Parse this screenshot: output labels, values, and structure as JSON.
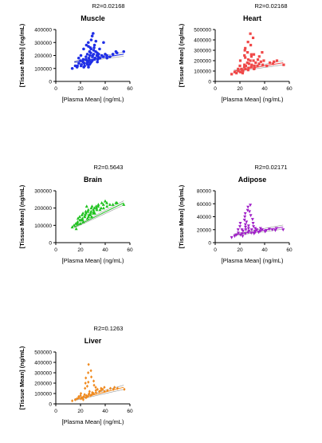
{
  "chart_data": [
    {
      "type": "scatter",
      "title": "Muscle",
      "r2_label": "R2=0.02168",
      "xlabel": "[Plasma Mean] (ng/mL)",
      "ylabel": "[Tissue Mean] (ng/mL)",
      "xlim": [
        0,
        60
      ],
      "ylim": [
        0,
        400000
      ],
      "xticks": [
        "0",
        "20",
        "40",
        "60"
      ],
      "yticks": [
        "0",
        "100000",
        "200000",
        "300000",
        "400000"
      ],
      "color": "#1f2ee6",
      "marker": "circle",
      "fit": {
        "start": [
          15,
          150000
        ],
        "end": [
          55,
          210000
        ]
      },
      "x": [
        14,
        16,
        17,
        18,
        19,
        20,
        20,
        21,
        21,
        22,
        22,
        23,
        23,
        24,
        24,
        25,
        25,
        25,
        26,
        26,
        26,
        27,
        27,
        27,
        28,
        28,
        28,
        29,
        29,
        29,
        30,
        30,
        30,
        31,
        31,
        32,
        32,
        33,
        33,
        34,
        34,
        35,
        35,
        36,
        37,
        38,
        39,
        40,
        41,
        42,
        44,
        46,
        48,
        50,
        55,
        26,
        28,
        30,
        27,
        29,
        18,
        22,
        24,
        33,
        35,
        25,
        30,
        29,
        28,
        32
      ],
      "y": [
        100000,
        120000,
        110000,
        140000,
        180000,
        160000,
        120000,
        200000,
        130000,
        170000,
        110000,
        250000,
        140000,
        190000,
        120000,
        280000,
        160000,
        130000,
        210000,
        150000,
        110000,
        300000,
        180000,
        130000,
        320000,
        200000,
        140000,
        350000,
        220000,
        150000,
        370000,
        240000,
        160000,
        260000,
        170000,
        280000,
        180000,
        200000,
        150000,
        220000,
        170000,
        250000,
        190000,
        180000,
        200000,
        300000,
        190000,
        210000,
        180000,
        200000,
        190000,
        210000,
        230000,
        220000,
        230000,
        270000,
        230000,
        200000,
        160000,
        190000,
        120000,
        150000,
        170000,
        230000,
        210000,
        140000,
        210000,
        250000,
        260000,
        310000
      ]
    },
    {
      "type": "scatter",
      "title": "Heart",
      "r2_label": "R2=0.02168",
      "xlabel": "[Plasma Mean] (ng/mL)",
      "ylabel": "[Tissue Mean] (ng/mL)",
      "xlim": [
        0,
        60
      ],
      "ylim": [
        0,
        500000
      ],
      "xticks": [
        "0",
        "20",
        "40",
        "60"
      ],
      "yticks": [
        "0",
        "100000",
        "200000",
        "300000",
        "400000",
        "500000"
      ],
      "color": "#f04848",
      "marker": "square",
      "fit": {
        "start": [
          15,
          100000
        ],
        "end": [
          55,
          180000
        ]
      },
      "x": [
        14,
        16,
        17,
        18,
        19,
        20,
        20,
        21,
        22,
        22,
        23,
        23,
        24,
        24,
        25,
        25,
        26,
        26,
        27,
        27,
        28,
        28,
        29,
        29,
        30,
        30,
        31,
        31,
        32,
        33,
        34,
        35,
        36,
        37,
        38,
        40,
        42,
        44,
        46,
        48,
        50,
        55,
        25,
        27,
        29,
        31,
        24,
        26,
        28,
        30,
        32,
        21,
        23,
        35,
        38
      ],
      "y": [
        70000,
        90000,
        80000,
        100000,
        120000,
        150000,
        90000,
        200000,
        110000,
        80000,
        250000,
        100000,
        300000,
        120000,
        320000,
        150000,
        280000,
        110000,
        380000,
        130000,
        460000,
        170000,
        350000,
        140000,
        420000,
        160000,
        200000,
        120000,
        260000,
        180000,
        150000,
        240000,
        170000,
        190000,
        160000,
        200000,
        150000,
        180000,
        170000,
        190000,
        200000,
        160000,
        230000,
        210000,
        260000,
        150000,
        140000,
        180000,
        200000,
        240000,
        130000,
        120000,
        160000,
        210000,
        280000
      ]
    },
    {
      "type": "scatter",
      "title": "Brain",
      "r2_label": "R2=0.5643",
      "xlabel": "[Plasma Mean] (ng/mL)",
      "ylabel": "[Tissue Mean] (ng/mL)",
      "xlim": [
        0,
        60
      ],
      "ylim": [
        0,
        300000
      ],
      "xticks": [
        "0",
        "20",
        "40",
        "60"
      ],
      "yticks": [
        "0",
        "100000",
        "200000",
        "300000"
      ],
      "color": "#1fc21f",
      "marker": "triangle",
      "fit": {
        "start": [
          15,
          90000
        ],
        "end": [
          55,
          230000
        ]
      },
      "x": [
        14,
        15,
        16,
        17,
        18,
        18,
        19,
        20,
        20,
        21,
        21,
        22,
        22,
        23,
        23,
        24,
        24,
        25,
        25,
        26,
        26,
        27,
        27,
        28,
        28,
        29,
        29,
        30,
        30,
        31,
        31,
        32,
        32,
        33,
        34,
        35,
        36,
        37,
        38,
        39,
        40,
        41,
        42,
        44,
        46,
        48,
        50,
        55,
        20,
        24,
        28,
        33,
        36,
        17,
        25,
        30
      ],
      "y": [
        90000,
        100000,
        110000,
        120000,
        110000,
        140000,
        130000,
        150000,
        110000,
        160000,
        130000,
        140000,
        170000,
        150000,
        120000,
        160000,
        180000,
        140000,
        170000,
        180000,
        150000,
        190000,
        160000,
        170000,
        200000,
        180000,
        150000,
        190000,
        210000,
        180000,
        200000,
        210000,
        170000,
        200000,
        220000,
        210000,
        190000,
        230000,
        200000,
        220000,
        240000,
        210000,
        230000,
        220000,
        220000,
        230000,
        230000,
        220000,
        130000,
        150000,
        160000,
        190000,
        200000,
        80000,
        210000,
        170000
      ]
    },
    {
      "type": "scatter",
      "title": "Adipose",
      "r2_label": "R2=0.02171",
      "xlabel": "[Plasma Mean] (ng/mL)",
      "ylabel": "[Tissue Mean] (ng/mL)",
      "xlim": [
        0,
        60
      ],
      "ylim": [
        0,
        80000
      ],
      "xticks": [
        "0",
        "20",
        "40",
        "60"
      ],
      "yticks": [
        "0",
        "20000",
        "40000",
        "60000",
        "80000"
      ],
      "color": "#a020c8",
      "marker": "triangle-down",
      "fit": {
        "start": [
          15,
          12000
        ],
        "end": [
          55,
          24000
        ]
      },
      "x": [
        14,
        16,
        17,
        18,
        19,
        20,
        20,
        21,
        22,
        22,
        23,
        23,
        24,
        24,
        25,
        25,
        26,
        26,
        27,
        27,
        28,
        28,
        29,
        29,
        30,
        30,
        31,
        32,
        33,
        34,
        35,
        36,
        37,
        38,
        40,
        42,
        44,
        46,
        48,
        50,
        55,
        24,
        26,
        28,
        30,
        21,
        25,
        27,
        31,
        33
      ],
      "y": [
        8000,
        10000,
        12000,
        15000,
        20000,
        25000,
        12000,
        30000,
        14000,
        10000,
        35000,
        18000,
        40000,
        14000,
        45000,
        20000,
        50000,
        16000,
        55000,
        22000,
        58000,
        18000,
        42000,
        15000,
        30000,
        20000,
        25000,
        22000,
        18000,
        20000,
        16000,
        22000,
        18000,
        20000,
        17000,
        19000,
        21000,
        20000,
        19000,
        22000,
        20000,
        28000,
        32000,
        48000,
        36000,
        20000,
        24000,
        26000,
        14000,
        16000
      ]
    },
    {
      "type": "scatter",
      "title": "Liver",
      "r2_label": "R2=0.1263",
      "xlabel": "[Plasma Mean] (ng/mL)",
      "ylabel": "[Tissue Mean] (ng/mL)",
      "xlim": [
        0,
        60
      ],
      "ylim": [
        0,
        500000
      ],
      "xticks": [
        "0",
        "20",
        "40",
        "60"
      ],
      "yticks": [
        "0",
        "100000",
        "200000",
        "300000",
        "400000",
        "500000"
      ],
      "color": "#f08a1e",
      "marker": "diamond",
      "fit": {
        "start": [
          15,
          40000
        ],
        "end": [
          55,
          160000
        ]
      },
      "x": [
        14,
        16,
        17,
        18,
        19,
        20,
        20,
        21,
        22,
        22,
        23,
        23,
        24,
        24,
        25,
        25,
        26,
        26,
        27,
        27,
        28,
        28,
        29,
        29,
        30,
        30,
        31,
        32,
        33,
        34,
        35,
        36,
        37,
        38,
        39,
        40,
        42,
        44,
        46,
        48,
        50,
        55,
        24,
        26,
        28,
        30,
        33,
        21,
        25,
        27
      ],
      "y": [
        30000,
        40000,
        50000,
        60000,
        70000,
        80000,
        50000,
        100000,
        60000,
        40000,
        150000,
        70000,
        200000,
        60000,
        250000,
        80000,
        300000,
        90000,
        380000,
        100000,
        320000,
        120000,
        260000,
        90000,
        220000,
        110000,
        180000,
        130000,
        160000,
        140000,
        120000,
        150000,
        130000,
        140000,
        120000,
        160000,
        130000,
        150000,
        140000,
        160000,
        150000,
        140000,
        90000,
        70000,
        80000,
        100000,
        110000,
        60000,
        170000,
        210000
      ]
    }
  ]
}
